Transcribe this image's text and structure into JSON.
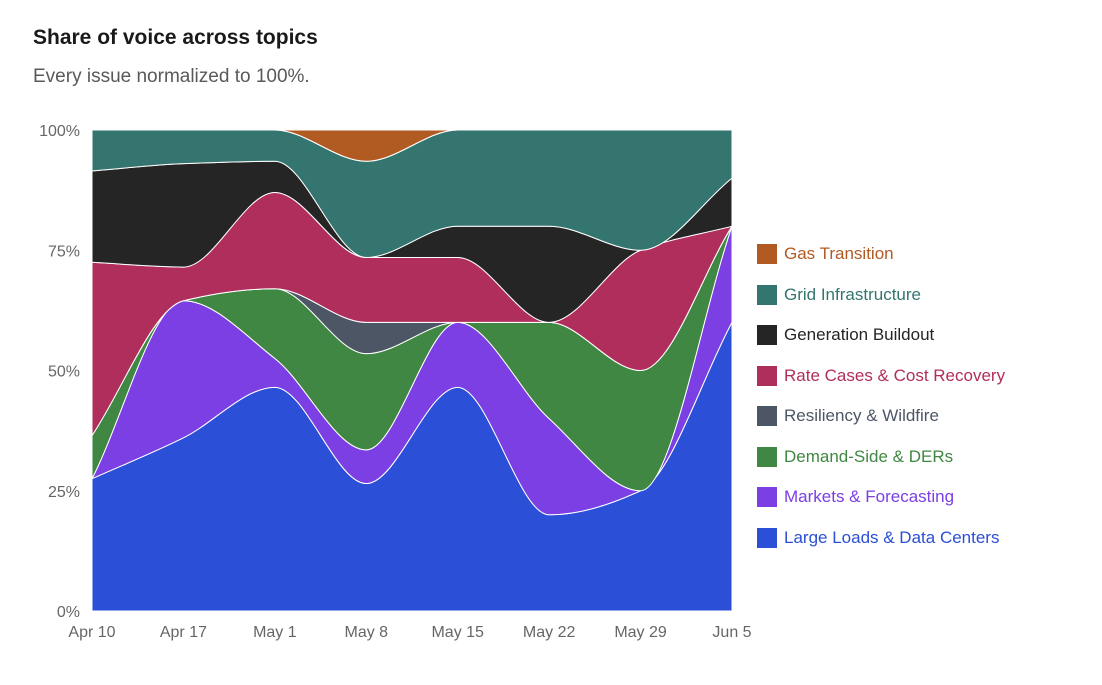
{
  "header": {
    "title": "Share of voice across topics",
    "subtitle": "Every issue normalized to 100%."
  },
  "chart_data": {
    "type": "area",
    "stacked": true,
    "normalized": true,
    "x": [
      "Apr 10",
      "Apr 17",
      "May 1",
      "May 8",
      "May 15",
      "May 22",
      "May 29",
      "Jun 5"
    ],
    "y_ticks": [
      "0%",
      "25%",
      "50%",
      "75%",
      "100%"
    ],
    "ylim": [
      0,
      100
    ],
    "legend_position": "right",
    "series": [
      {
        "name": "Large Loads & Data Centers",
        "color": "#2b4fd6",
        "values": [
          27.5,
          36,
          46.5,
          26.5,
          46.5,
          20,
          25,
          60
        ]
      },
      {
        "name": "Markets & Forecasting",
        "color": "#7b3fe4",
        "values": [
          0,
          28.5,
          6,
          7,
          13.5,
          20,
          0,
          20
        ]
      },
      {
        "name": "Demand-Side & DERs",
        "color": "#3f8742",
        "values": [
          9,
          0,
          14.5,
          20,
          0,
          20,
          25,
          0
        ]
      },
      {
        "name": "Resiliency & Wildfire",
        "color": "#4d5665",
        "values": [
          0,
          0,
          0,
          6.5,
          0,
          0,
          0,
          0
        ]
      },
      {
        "name": "Rate Cases & Cost Recovery",
        "color": "#b02e5c",
        "values": [
          36,
          7,
          20,
          13.5,
          13.5,
          0,
          25,
          0
        ]
      },
      {
        "name": "Generation Buildout",
        "color": "#252525",
        "values": [
          19,
          21.5,
          6.5,
          0,
          6.5,
          20,
          0,
          10
        ]
      },
      {
        "name": "Grid Infrastructure",
        "color": "#35756f",
        "values": [
          8.5,
          7,
          6.5,
          20,
          20,
          20,
          25,
          10
        ]
      },
      {
        "name": "Gas Transition",
        "color": "#b15a22",
        "values": [
          0,
          0,
          0,
          6.5,
          0,
          0,
          0,
          0
        ]
      }
    ]
  }
}
